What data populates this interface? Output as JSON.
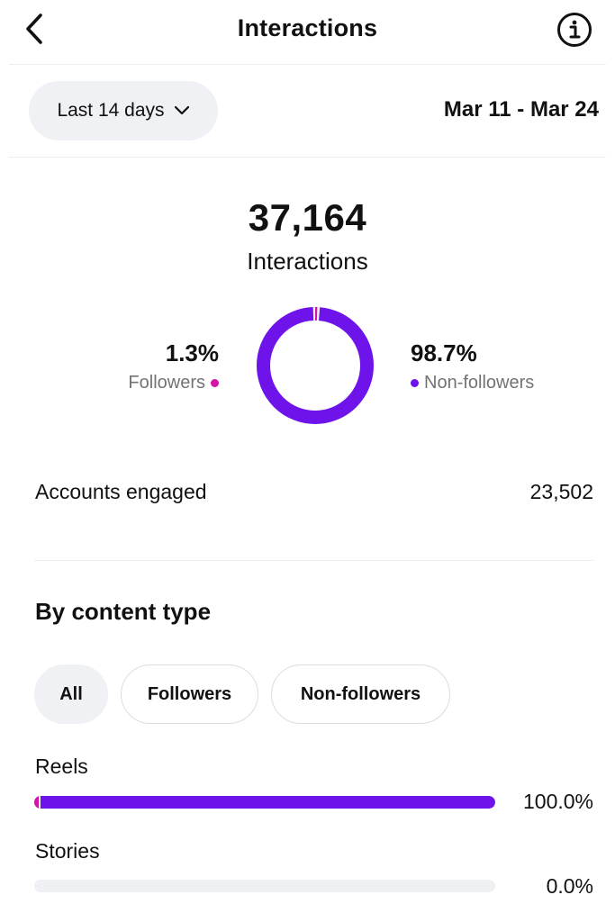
{
  "header": {
    "title": "Interactions",
    "back_icon": "chevron-left-icon",
    "info_icon": "info-icon"
  },
  "period": {
    "selected": "Last 14 days",
    "date_range": "Mar 11 - Mar 24"
  },
  "summary": {
    "total": "37,164",
    "label": "Interactions",
    "followers_pct": "1.3%",
    "followers_label": "Followers",
    "non_followers_pct": "98.7%",
    "non_followers_label": "Non-followers",
    "followers_share": 0.013,
    "non_followers_share": 0.987
  },
  "accounts_engaged": {
    "label": "Accounts engaged",
    "value": "23,502"
  },
  "content_type": {
    "title": "By content type",
    "filters": [
      "All",
      "Followers",
      "Non-followers"
    ],
    "active_filter": "All",
    "rows": [
      {
        "label": "Reels",
        "pct": "100.0%",
        "share": 1.0,
        "followers_share": 0.013
      },
      {
        "label": "Stories",
        "pct": "0.0%",
        "share": 0.0,
        "followers_share": 0.0
      }
    ]
  },
  "colors": {
    "followers": "#d314a7",
    "non_followers": "#6e14ea",
    "track": "#eef0f4"
  }
}
